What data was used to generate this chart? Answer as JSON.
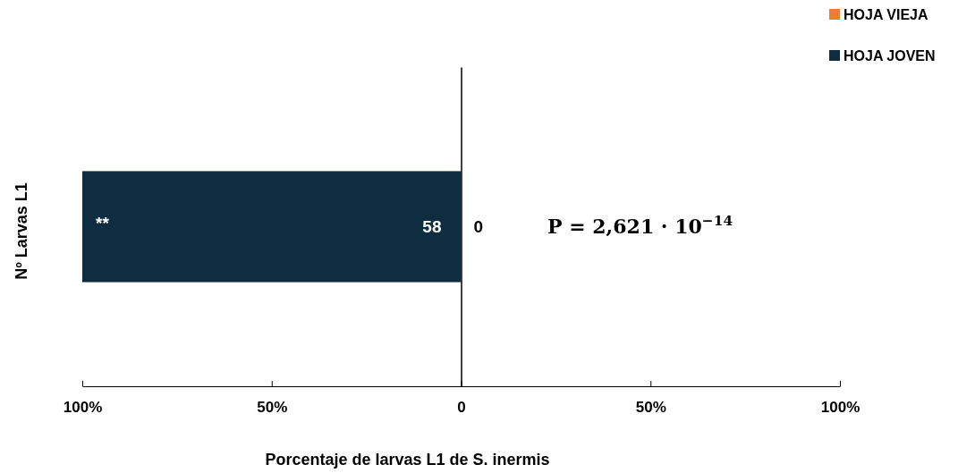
{
  "chart_data": {
    "type": "bar",
    "orientation": "horizontal",
    "ylabel": "Nº Larvas L1",
    "xlabel": "Porcentaje de larvas L1 de S. inermis",
    "categories": [
      null
    ],
    "series": [
      {
        "name": "HOJA VIEJA",
        "color": "#ed7d31",
        "values": [
          0
        ]
      },
      {
        "name": "HOJA JOVEN",
        "color": "#0e2d40",
        "values": [
          -100
        ]
      }
    ],
    "xlim": [
      -100,
      100
    ],
    "xticks": [
      {
        "value": -100,
        "label": "100%"
      },
      {
        "value": -50,
        "label": "50%"
      },
      0,
      {
        "value": 50,
        "label": "50%"
      },
      {
        "value": 100,
        "label": "100%"
      }
    ],
    "legend": "top right",
    "annotations": [
      "**",
      "58",
      "0",
      "P = 2,621 · 10$^{−14}$"
    ]
  }
}
